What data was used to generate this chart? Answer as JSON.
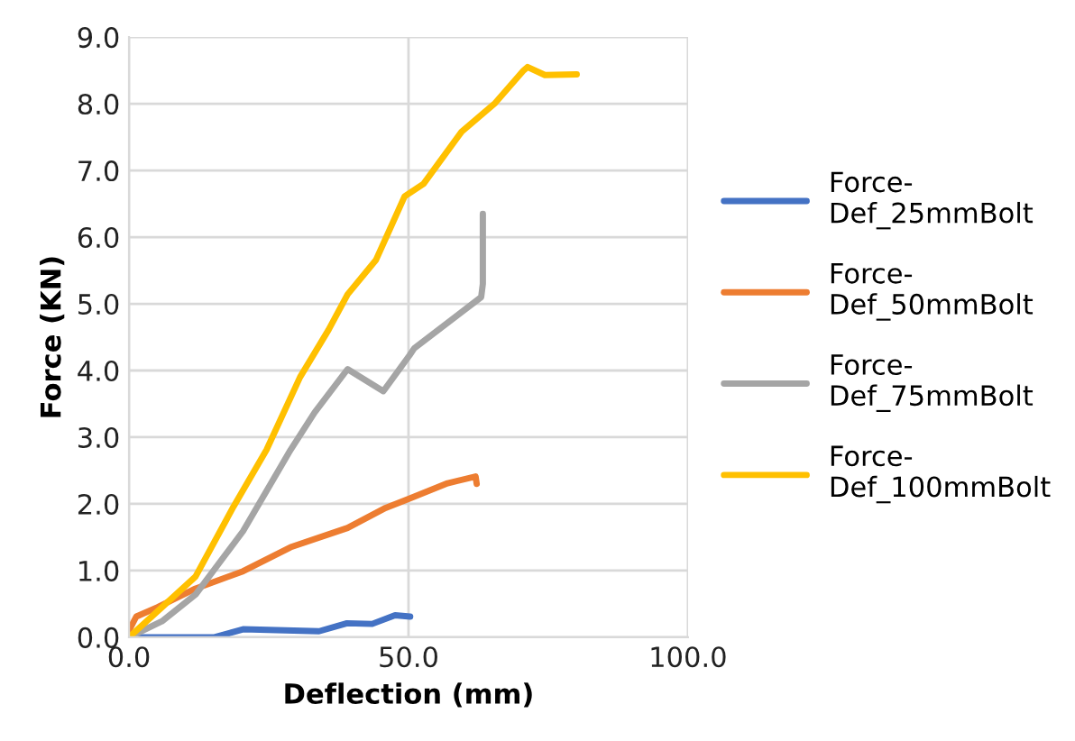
{
  "chart_data": {
    "type": "line",
    "xlabel": "Deflection (mm)",
    "ylabel": "Force (KN)",
    "xlim": [
      0,
      100
    ],
    "ylim": [
      0,
      9
    ],
    "xticks": [
      {
        "value": 0,
        "label": "0.0"
      },
      {
        "value": 50,
        "label": "50.0"
      },
      {
        "value": 100,
        "label": "100.0"
      }
    ],
    "yticks": [
      {
        "value": 0,
        "label": "0.0"
      },
      {
        "value": 1,
        "label": "1.0"
      },
      {
        "value": 2,
        "label": "2.0"
      },
      {
        "value": 3,
        "label": "3.0"
      },
      {
        "value": 4,
        "label": "4.0"
      },
      {
        "value": 5,
        "label": "5.0"
      },
      {
        "value": 6,
        "label": "6.0"
      },
      {
        "value": 7,
        "label": "7.0"
      },
      {
        "value": 8,
        "label": "8.0"
      },
      {
        "value": 9,
        "label": "9.0"
      }
    ],
    "grid": true,
    "legend": "right",
    "marker": "none",
    "line_style": "solid",
    "series": [
      {
        "name": "Force-\nDef_25mmBolt",
        "color": "#4472c4",
        "x": [
          0,
          15.3,
          20.4,
          34,
          39,
          43.5,
          47.6,
          50.3
        ],
        "values": [
          0,
          0,
          0.12,
          0.09,
          0.21,
          0.2,
          0.33,
          0.31
        ]
      },
      {
        "name": "Force-\nDef_50mmBolt",
        "color": "#ed7d31",
        "x": [
          0,
          1.3,
          5.1,
          11.9,
          20.4,
          28.9,
          39.1,
          45.9,
          50.2,
          57,
          62,
          62.2
        ],
        "values": [
          0.1,
          0.31,
          0.45,
          0.73,
          0.99,
          1.35,
          1.64,
          1.94,
          2.08,
          2.31,
          2.41,
          2.3
        ]
      },
      {
        "name": "Force-\nDef_75mmBolt",
        "color": "#a5a5a5",
        "x": [
          0,
          5.9,
          11.9,
          20.4,
          28.9,
          33.2,
          39.1,
          45.5,
          50.2,
          51,
          63,
          63.3,
          63.3
        ],
        "values": [
          0,
          0.24,
          0.64,
          1.59,
          2.81,
          3.37,
          4.02,
          3.69,
          4.23,
          4.33,
          5.1,
          5.3,
          6.35
        ]
      },
      {
        "name": "Force-\nDef_100mmBolt",
        "color": "#ffc000",
        "x": [
          0,
          5.9,
          11.9,
          18.7,
          24.6,
          30.6,
          35.7,
          39.1,
          44.2,
          49.3,
          52.7,
          59.5,
          65.5,
          70.6,
          71.3,
          74.4,
          80.1
        ],
        "values": [
          0,
          0.45,
          0.91,
          1.96,
          2.81,
          3.9,
          4.61,
          5.14,
          5.66,
          6.61,
          6.8,
          7.58,
          8.01,
          8.5,
          8.55,
          8.43,
          8.44
        ]
      }
    ]
  }
}
